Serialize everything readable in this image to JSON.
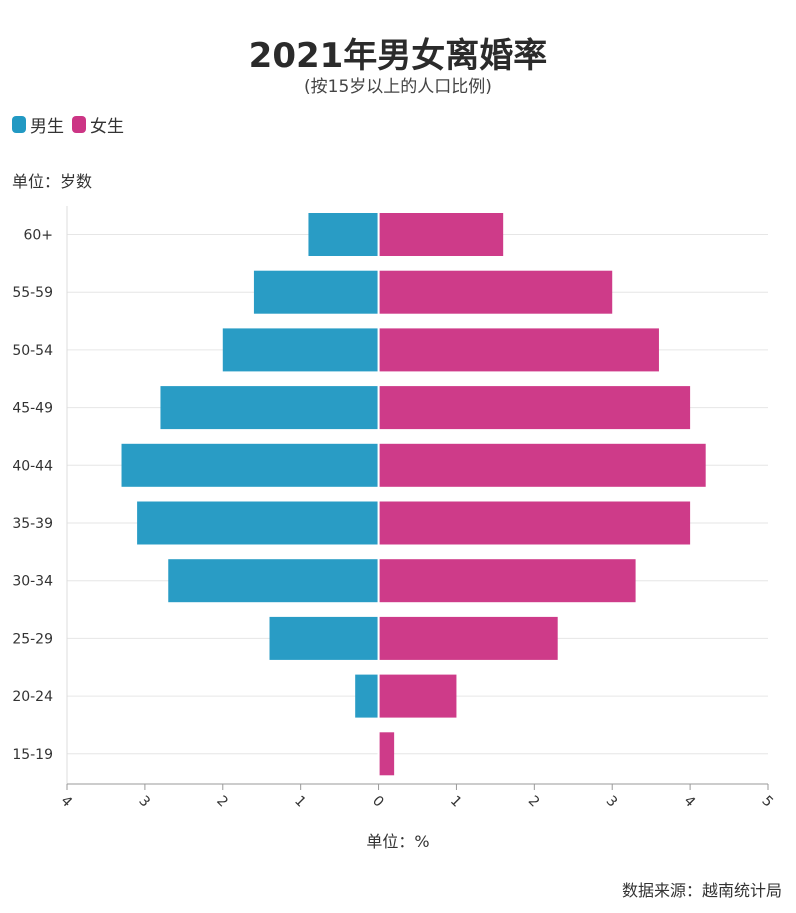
{
  "title": "2021年男女离婚率",
  "subtitle": "(按15岁以上的人口比例)",
  "legend": {
    "male": "男生",
    "female": "女生"
  },
  "y_unit": "单位：岁数",
  "x_unit": "单位：%",
  "source": "数据来源：越南统计局",
  "colors": {
    "male": "#2299c3",
    "female": "#cc3585",
    "grid": "#e6e6e6",
    "axis": "#999999",
    "text": "#333333"
  },
  "chart_data": {
    "type": "bar",
    "orientation": "horizontal-diverging",
    "title": "2021年男女离婚率",
    "subtitle": "(按15岁以上的人口比例)",
    "xlabel": "单位：%",
    "ylabel": "单位：岁数",
    "categories": [
      "60+",
      "55-59",
      "50-54",
      "45-49",
      "40-44",
      "35-39",
      "30-34",
      "25-29",
      "20-24",
      "15-19"
    ],
    "series": [
      {
        "name": "男生",
        "side": "left",
        "values": [
          0.9,
          1.6,
          2.0,
          2.8,
          3.3,
          3.1,
          2.7,
          1.4,
          0.3,
          0.0
        ]
      },
      {
        "name": "女生",
        "side": "right",
        "values": [
          1.6,
          3.0,
          3.6,
          4.0,
          4.2,
          4.0,
          3.3,
          2.3,
          1.0,
          0.2
        ]
      }
    ],
    "xlim": [
      -4,
      5
    ],
    "x_ticks": [
      -4,
      -3,
      -2,
      -1,
      0,
      1,
      2,
      3,
      4,
      5
    ],
    "x_tick_labels": [
      "4",
      "3",
      "2",
      "1",
      "0",
      "1",
      "2",
      "3",
      "4",
      "5"
    ],
    "grid": true,
    "legend_position": "top-left"
  }
}
